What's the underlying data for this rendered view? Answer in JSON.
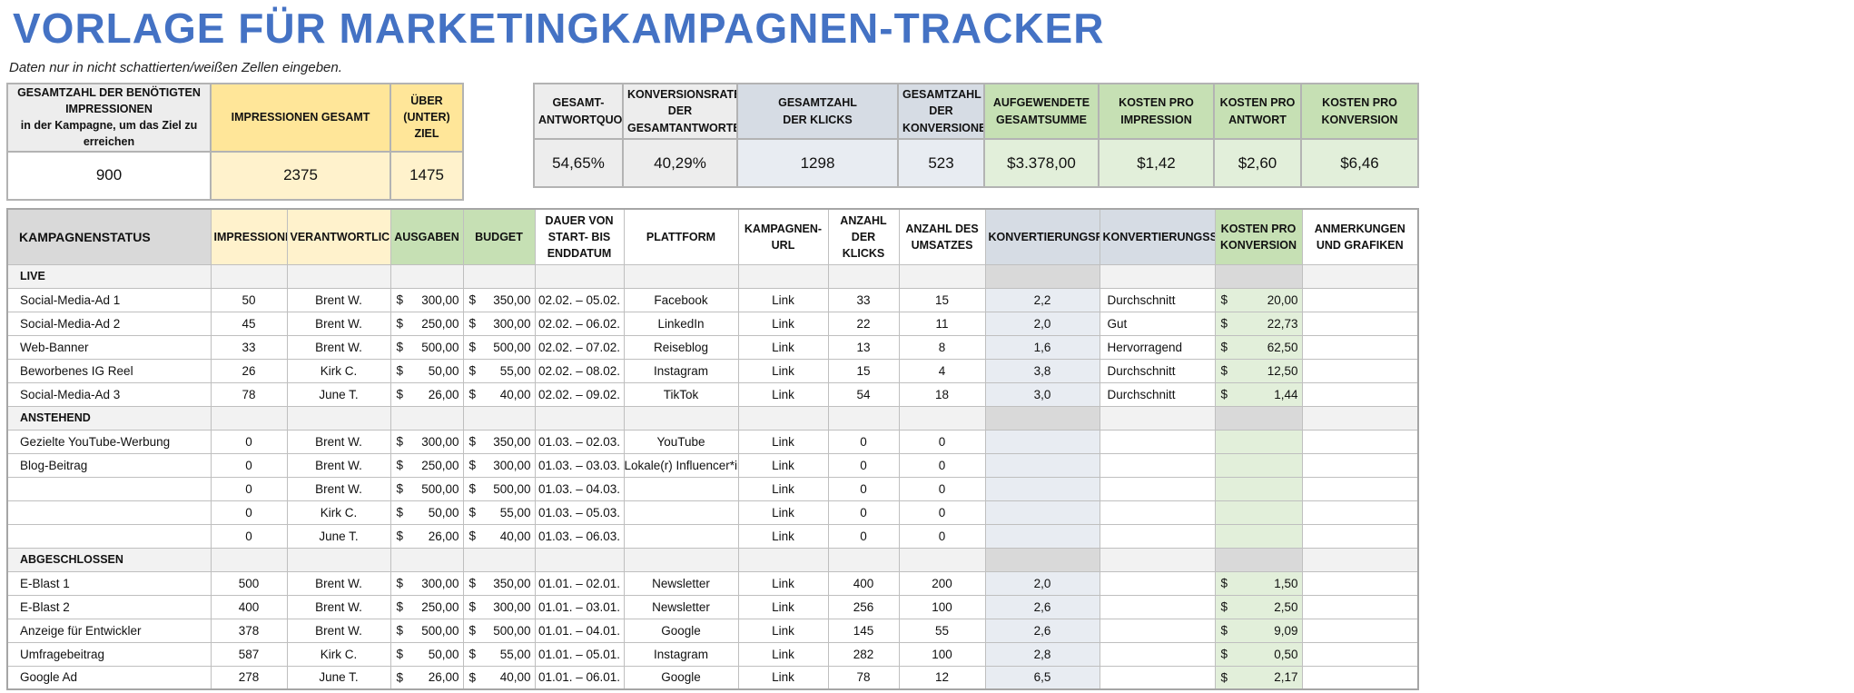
{
  "title": "VORLAGE FÜR MARKETINGKAMPAGNEN-TRACKER",
  "subtitle": "Daten nur in nicht schattierten/weißen Zellen eingeben.",
  "colors": {
    "title": "#4472C4",
    "header_grey": "#d9d9d9",
    "header_yellow": "#ffe699",
    "value_yellow": "#fff2cc",
    "header_blue": "#d6dce4",
    "header_green": "#c6e0b4",
    "value_green": "#e2efda"
  },
  "summary_left": {
    "headers": [
      "GESAMTZAHL DER BENÖTIGTEN IMPRESSIONEN",
      "in der Kampagne, um das Ziel zu erreichen",
      "IMPRESSIONEN GESAMT",
      "ÜBER (UNTER) ZIEL"
    ],
    "values": [
      "900",
      "2375",
      "1475"
    ]
  },
  "summary_right": {
    "headers": [
      "GESAMT-ANTWORTQUOTE",
      "KONVERSIONSRATE DER GESAMTANTWORTEN",
      "GESAMTZAHL DER KLICKS",
      "GESAMTZAHL DER KONVERSIONEN",
      "AUFGEWENDETE GESAMTSUMME",
      "KOSTEN PRO IMPRESSION",
      "KOSTEN PRO ANTWORT",
      "KOSTEN PRO KONVERSION"
    ],
    "values": [
      "54,65%",
      "40,29%",
      "1298",
      "523",
      "$3.378,00",
      "$1,42",
      "$2,60",
      "$6,46"
    ]
  },
  "table": {
    "headers": [
      "KAMPAGNENSTATUS",
      "IMPRESSIONEN",
      "VERANTWORTLICHE*R",
      "AUSGABEN",
      "BUDGET",
      "DAUER VON START- BIS ENDDATUM",
      "PLATTFORM",
      "KAMPAGNEN-URL",
      "ANZAHL DER KLICKS",
      "ANZAHL DES UMSATZES",
      "KONVERTIERUNGSRATE",
      "KONVERTIERUNGSSTATUS",
      "KOSTEN PRO KONVERSION",
      "ANMERKUNGEN UND GRAFIKEN"
    ],
    "currency_symbol": "$",
    "sections": [
      {
        "name": "LIVE",
        "rows": [
          {
            "name": "Social-Media-Ad 1",
            "impressions": "50",
            "owner": "Brent W.",
            "spend": "300,00",
            "budget": "350,00",
            "duration": "02.02. – 05.02.",
            "platform": "Facebook",
            "url": "Link",
            "clicks": "33",
            "sales": "15",
            "rate": "2,2",
            "status": "Durchschnitt",
            "cpc": "20,00"
          },
          {
            "name": "Social-Media-Ad 2",
            "impressions": "45",
            "owner": "Brent W.",
            "spend": "250,00",
            "budget": "300,00",
            "duration": "02.02. – 06.02.",
            "platform": "LinkedIn",
            "url": "Link",
            "clicks": "22",
            "sales": "11",
            "rate": "2,0",
            "status": "Gut",
            "cpc": "22,73"
          },
          {
            "name": "Web-Banner",
            "impressions": "33",
            "owner": "Brent W.",
            "spend": "500,00",
            "budget": "500,00",
            "duration": "02.02. – 07.02.",
            "platform": "Reiseblog",
            "url": "Link",
            "clicks": "13",
            "sales": "8",
            "rate": "1,6",
            "status": "Hervorragend",
            "cpc": "62,50"
          },
          {
            "name": "Beworbenes IG Reel",
            "impressions": "26",
            "owner": "Kirk C.",
            "spend": "50,00",
            "budget": "55,00",
            "duration": "02.02. – 08.02.",
            "platform": "Instagram",
            "url": "Link",
            "clicks": "15",
            "sales": "4",
            "rate": "3,8",
            "status": "Durchschnitt",
            "cpc": "12,50"
          },
          {
            "name": "Social-Media-Ad 3",
            "impressions": "78",
            "owner": "June T.",
            "spend": "26,00",
            "budget": "40,00",
            "duration": "02.02. – 09.02.",
            "platform": "TikTok",
            "url": "Link",
            "clicks": "54",
            "sales": "18",
            "rate": "3,0",
            "status": "Durchschnitt",
            "cpc": "1,44"
          }
        ]
      },
      {
        "name": "ANSTEHEND",
        "rows": [
          {
            "name": "Gezielte YouTube-Werbung",
            "impressions": "0",
            "owner": "Brent W.",
            "spend": "300,00",
            "budget": "350,00",
            "duration": "01.03. – 02.03.",
            "platform": "YouTube",
            "url": "Link",
            "clicks": "0",
            "sales": "0",
            "rate": "",
            "status": "",
            "cpc": ""
          },
          {
            "name": "Blog-Beitrag",
            "impressions": "0",
            "owner": "Brent W.",
            "spend": "250,00",
            "budget": "300,00",
            "duration": "01.03. – 03.03.",
            "platform": "Lokale(r) Influencer*in",
            "url": "Link",
            "clicks": "0",
            "sales": "0",
            "rate": "",
            "status": "",
            "cpc": ""
          },
          {
            "name": "",
            "impressions": "0",
            "owner": "Brent W.",
            "spend": "500,00",
            "budget": "500,00",
            "duration": "01.03. – 04.03.",
            "platform": "",
            "url": "Link",
            "clicks": "0",
            "sales": "0",
            "rate": "",
            "status": "",
            "cpc": ""
          },
          {
            "name": "",
            "impressions": "0",
            "owner": "Kirk C.",
            "spend": "50,00",
            "budget": "55,00",
            "duration": "01.03. – 05.03.",
            "platform": "",
            "url": "Link",
            "clicks": "0",
            "sales": "0",
            "rate": "",
            "status": "",
            "cpc": ""
          },
          {
            "name": "",
            "impressions": "0",
            "owner": "June T.",
            "spend": "26,00",
            "budget": "40,00",
            "duration": "01.03. – 06.03.",
            "platform": "",
            "url": "Link",
            "clicks": "0",
            "sales": "0",
            "rate": "",
            "status": "",
            "cpc": ""
          }
        ]
      },
      {
        "name": "ABGESCHLOSSEN",
        "rows": [
          {
            "name": "E-Blast 1",
            "impressions": "500",
            "owner": "Brent W.",
            "spend": "300,00",
            "budget": "350,00",
            "duration": "01.01. – 02.01.",
            "platform": "Newsletter",
            "url": "Link",
            "clicks": "400",
            "sales": "200",
            "rate": "2,0",
            "status": "",
            "cpc": "1,50"
          },
          {
            "name": "E-Blast 2",
            "impressions": "400",
            "owner": "Brent W.",
            "spend": "250,00",
            "budget": "300,00",
            "duration": "01.01. – 03.01.",
            "platform": "Newsletter",
            "url": "Link",
            "clicks": "256",
            "sales": "100",
            "rate": "2,6",
            "status": "",
            "cpc": "2,50"
          },
          {
            "name": "Anzeige für Entwickler",
            "impressions": "378",
            "owner": "Brent W.",
            "spend": "500,00",
            "budget": "500,00",
            "duration": "01.01. – 04.01.",
            "platform": "Google",
            "url": "Link",
            "clicks": "145",
            "sales": "55",
            "rate": "2,6",
            "status": "",
            "cpc": "9,09"
          },
          {
            "name": "Umfragebeitrag",
            "impressions": "587",
            "owner": "Kirk C.",
            "spend": "50,00",
            "budget": "55,00",
            "duration": "01.01. – 05.01.",
            "platform": "Instagram",
            "url": "Link",
            "clicks": "282",
            "sales": "100",
            "rate": "2,8",
            "status": "",
            "cpc": "0,50"
          },
          {
            "name": "Google Ad",
            "impressions": "278",
            "owner": "June T.",
            "spend": "26,00",
            "budget": "40,00",
            "duration": "01.01. – 06.01.",
            "platform": "Google",
            "url": "Link",
            "clicks": "78",
            "sales": "12",
            "rate": "6,5",
            "status": "",
            "cpc": "2,17"
          }
        ]
      }
    ]
  }
}
